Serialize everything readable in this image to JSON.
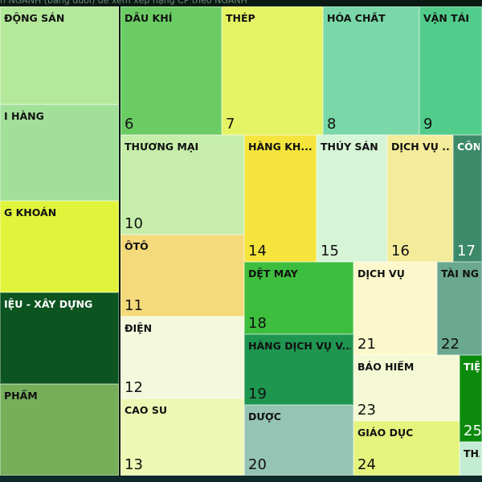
{
  "header": {
    "text": "n NGÀNH (bảng dưới) để xem xếp hạng CP theo NGÀNH"
  },
  "tiles": [
    {
      "label": "ĐỘNG SẢN"
    },
    {
      "label": "DẦU KHÍ",
      "rank": 6
    },
    {
      "label": "THÉP",
      "rank": 7
    },
    {
      "label": "HÓA CHẤT",
      "rank": 8
    },
    {
      "label": "VẬN TẢI",
      "rank": 9
    },
    {
      "label": "I HÀNG"
    },
    {
      "label": "THƯƠNG MẠI",
      "rank": 10
    },
    {
      "label": "HÀNG KH...",
      "rank": 14
    },
    {
      "label": "THỦY SẢN",
      "rank": 15
    },
    {
      "label": "DỊCH VỤ ...",
      "rank": 16
    },
    {
      "label": "CÔN",
      "rank": 17
    },
    {
      "label": "G KHOÁN"
    },
    {
      "label": "ÔTÔ",
      "rank": 11
    },
    {
      "label": "DỆT MAY",
      "rank": 18
    },
    {
      "label": "DỊCH VỤ",
      "rank": 21
    },
    {
      "label": "TÀI NGU",
      "rank": 22
    },
    {
      "label": "IỆU - XÂY DỰNG"
    },
    {
      "label": "ĐIỆN",
      "rank": 12
    },
    {
      "label": "HÀNG DỊCH VỤ V...",
      "rank": 19
    },
    {
      "label": "BẢO HIỂM",
      "rank": 23
    },
    {
      "label": "TIỆ",
      "rank": 25
    },
    {
      "label": "PHẨM"
    },
    {
      "label": "CAO SU",
      "rank": 13
    },
    {
      "label": "DƯỢC",
      "rank": 20
    },
    {
      "label": "GIÁO DỤC",
      "rank": 24
    },
    {
      "label": "THA"
    }
  ]
}
